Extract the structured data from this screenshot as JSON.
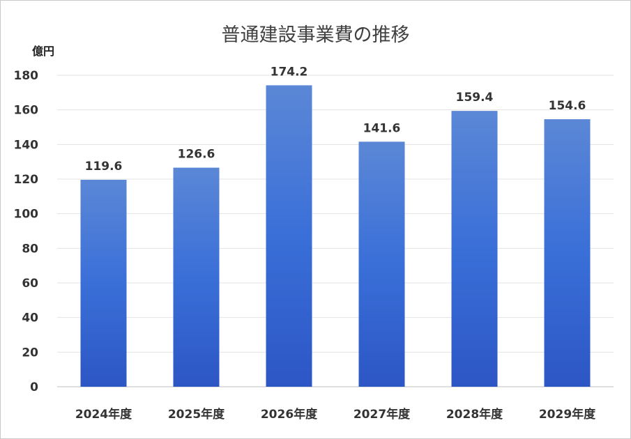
{
  "chart_data": {
    "type": "bar",
    "title": "普通建設事業費の推移",
    "ylabel": "億円",
    "xlabel": "",
    "categories": [
      "2024年度",
      "2025年度",
      "2026年度",
      "2027年度",
      "2028年度",
      "2029年度"
    ],
    "values": [
      119.6,
      126.6,
      174.2,
      141.6,
      159.4,
      154.6
    ],
    "data_labels": [
      "119.6",
      "126.6",
      "174.2",
      "141.6",
      "159.4",
      "154.6"
    ],
    "ylim": [
      0,
      180
    ],
    "yticks": [
      0,
      20,
      40,
      60,
      80,
      100,
      120,
      140,
      160,
      180
    ],
    "grid": true,
    "legend": "none",
    "bar_color_top": "#5b87d6",
    "bar_color_bottom": "#2c56c4"
  }
}
